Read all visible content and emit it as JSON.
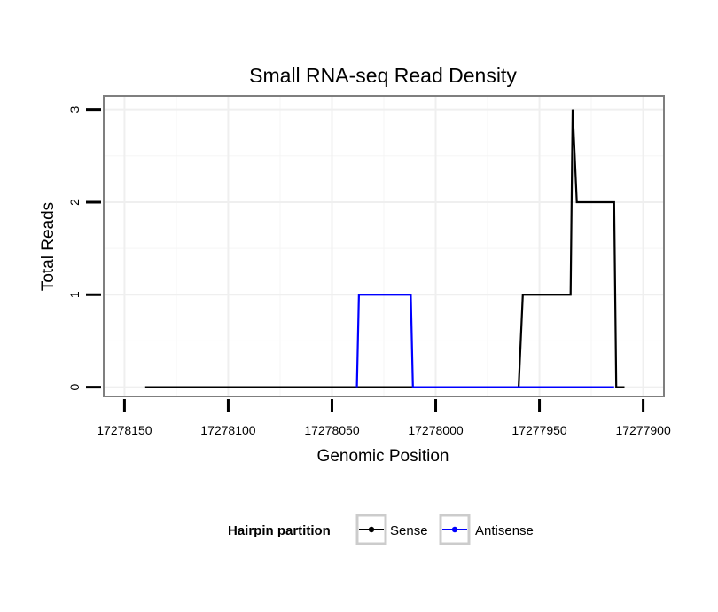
{
  "chart_data": {
    "type": "line",
    "title": "Small RNA-seq Read Density",
    "xlabel": "Genomic Position",
    "ylabel": "Total Reads",
    "x_reversed": true,
    "xlim": [
      17278160,
      17277890
    ],
    "ylim": [
      -0.1,
      3.15
    ],
    "x_ticks": [
      17278150,
      17278100,
      17278050,
      17278000,
      17277950,
      17277900
    ],
    "x_tick_labels": [
      "17278150",
      "17278100",
      "17278050",
      "17278000",
      "17277950",
      "17277900"
    ],
    "y_ticks": [
      0,
      1,
      2,
      3
    ],
    "y_tick_labels": [
      "0",
      "1",
      "2",
      "3"
    ],
    "grid": true,
    "legend": {
      "title": "Hairpin partition",
      "position": "bottom",
      "entries": [
        {
          "label": "Sense",
          "color": "#000000"
        },
        {
          "label": "Antisense",
          "color": "#0000ff"
        }
      ]
    },
    "series": [
      {
        "name": "Sense",
        "color": "#000000",
        "x": [
          17278140,
          17277960,
          17277958,
          17277935,
          17277934,
          17277932,
          17277914,
          17277913,
          17277909
        ],
        "y": [
          0,
          0,
          1,
          1,
          3,
          2,
          2,
          0,
          0
        ]
      },
      {
        "name": "Antisense",
        "color": "#0000ff",
        "x": [
          17278038,
          17278037,
          17278012,
          17278011,
          17277960,
          17277914
        ],
        "y": [
          0,
          1,
          1,
          0,
          0,
          0
        ]
      }
    ]
  }
}
